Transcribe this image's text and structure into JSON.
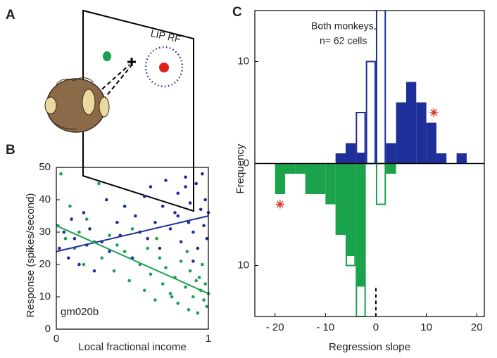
{
  "panel_a": {
    "label": "A",
    "rf_label": "LIP RF"
  },
  "chart_data": [
    {
      "type": "scatter",
      "panel_label": "B",
      "xlabel": "Local fractional income",
      "ylabel": "Response (spikes/second)",
      "annotation": "gm020b",
      "xlim": [
        0,
        1
      ],
      "ylim": [
        0,
        50
      ],
      "xticks": [
        0,
        1
      ],
      "yticks": [
        0,
        10,
        20,
        30,
        40,
        50
      ],
      "series": [
        {
          "color": "#1f2f9a",
          "x": [
            0.02,
            0.05,
            0.08,
            0.1,
            0.12,
            0.15,
            0.18,
            0.2,
            0.22,
            0.25,
            0.3,
            0.33,
            0.35,
            0.4,
            0.42,
            0.45,
            0.5,
            0.52,
            0.55,
            0.58,
            0.6,
            0.62,
            0.65,
            0.68,
            0.7,
            0.72,
            0.75,
            0.78,
            0.8,
            0.82,
            0.85,
            0.87,
            0.88,
            0.9,
            0.92,
            0.93,
            0.95,
            0.96,
            0.97,
            0.98,
            0.99,
            1.0,
            0.9,
            0.85,
            0.8
          ],
          "y": [
            25,
            30,
            22,
            34,
            28,
            20,
            36,
            26,
            31,
            18,
            27,
            40,
            24,
            33,
            29,
            38,
            22,
            35,
            30,
            41,
            28,
            44,
            33,
            25,
            38,
            46,
            31,
            36,
            42,
            27,
            47,
            33,
            39,
            30,
            45,
            25,
            37,
            48,
            32,
            40,
            28,
            36,
            21,
            44,
            35
          ],
          "fit": [
            24,
            35
          ]
        },
        {
          "color": "#1aa34a",
          "x": [
            0.01,
            0.03,
            0.06,
            0.09,
            0.12,
            0.15,
            0.18,
            0.2,
            0.25,
            0.28,
            0.3,
            0.35,
            0.38,
            0.4,
            0.45,
            0.48,
            0.5,
            0.55,
            0.58,
            0.6,
            0.62,
            0.65,
            0.68,
            0.7,
            0.72,
            0.75,
            0.78,
            0.8,
            0.82,
            0.85,
            0.87,
            0.88,
            0.9,
            0.92,
            0.93,
            0.95,
            0.96,
            0.97,
            0.98,
            0.99,
            1.0,
            0.94,
            0.86,
            0.76,
            0.66
          ],
          "y": [
            32,
            48,
            28,
            38,
            25,
            30,
            20,
            34,
            27,
            45,
            22,
            29,
            18,
            26,
            24,
            15,
            31,
            20,
            12,
            25,
            17,
            9,
            22,
            14,
            19,
            11,
            16,
            8,
            21,
            13,
            6,
            18,
            10,
            15,
            5,
            12,
            20,
            9,
            14,
            7,
            11,
            16,
            24,
            10,
            28
          ],
          "fit": [
            32,
            11
          ]
        }
      ]
    },
    {
      "type": "histogram",
      "panel_label": "C",
      "xlabel": "Regression slope",
      "ylabel": "Frequency",
      "annotation": [
        "Both monkeys,",
        "n= 62 cells"
      ],
      "xlim": [
        -24,
        21.5
      ],
      "ylim": [
        -15,
        15
      ],
      "xticks": [
        {
          "value": -20,
          "label": "- 20"
        },
        {
          "value": -10,
          "label": "- 10"
        },
        0,
        10,
        20
      ],
      "yticks": [
        {
          "value": -10,
          "label": "10"
        },
        0,
        10
      ],
      "bins": [
        -20,
        -18,
        -16,
        -14,
        -12,
        -10,
        -8,
        -6,
        -4,
        -2,
        0,
        2,
        4,
        6,
        8,
        10,
        12,
        14,
        16,
        18,
        20
      ],
      "series": [
        {
          "color": "#1f2f9a",
          "direction": "up",
          "filled": [
            0,
            0,
            0,
            0,
            0,
            0,
            1,
            2,
            1,
            0,
            0,
            2,
            6,
            8,
            6,
            4,
            1,
            0,
            1,
            0
          ],
          "open": [
            0,
            0,
            0,
            0,
            0,
            0,
            0,
            0,
            4,
            10,
            16,
            0,
            0,
            0,
            0,
            0,
            0,
            0,
            0,
            0
          ]
        },
        {
          "color": "#1aa34a",
          "direction": "down",
          "filled": [
            3,
            1,
            1,
            3,
            3,
            4,
            7,
            9,
            12,
            0,
            0,
            1,
            0,
            0,
            0,
            0,
            0,
            0,
            0,
            0
          ],
          "open": [
            0,
            0,
            0,
            0,
            0,
            0,
            0,
            1,
            3,
            0,
            4,
            0,
            0,
            0,
            0,
            0,
            0,
            0,
            0,
            0
          ]
        }
      ],
      "markers": {
        "color": "#e0302a",
        "x": [
          11.5,
          -19
        ],
        "y": [
          5,
          -4
        ]
      }
    }
  ]
}
